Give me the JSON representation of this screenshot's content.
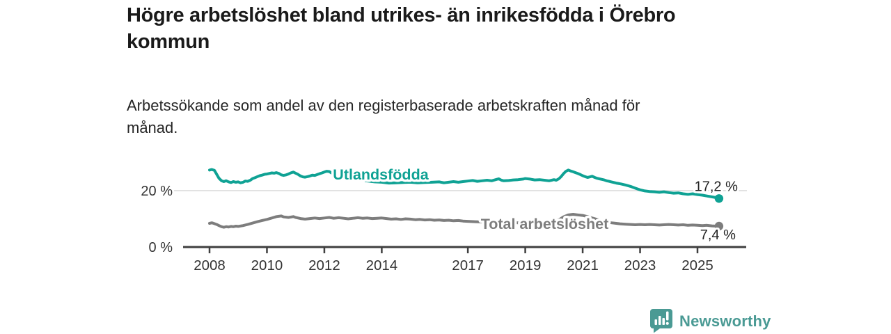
{
  "header": {
    "title": "Högre arbetslöshet bland utrikes- än inrikesfödda i Örebro kommun",
    "subtitle": "Arbetssökande som andel av den registerbaserade arbetskraften månad för månad."
  },
  "colors": {
    "title_text": "#1A1A1A",
    "subtitle_text": "#262626",
    "axis_line": "#3F3F3F",
    "axis_text": "#333333",
    "grid_line": "#D9D9D9",
    "value_label": "#222222",
    "series_utlandsfodda": "#0FA294",
    "series_total": "#7D7D7D",
    "brand_teal": "#4A9A94"
  },
  "chart_data": {
    "type": "line",
    "title": "Högre arbetslöshet bland utrikes- än inrikesfödda i Örebro kommun",
    "subtitle": "Arbetssökande som andel av den registerbaserade arbetskraften månad för månad.",
    "xlabel": "",
    "ylabel": "",
    "unit": "%",
    "xlim": [
      2007.1,
      2026.7
    ],
    "ylim": [
      0,
      30
    ],
    "grid": "horizontal line at 20 % only",
    "legend_position": "inline-labels-on-lines",
    "x_ticks": [
      2008,
      2010,
      2012,
      2014,
      2017,
      2019,
      2021,
      2023,
      2025
    ],
    "y_ticks": [
      {
        "value": 20,
        "label": "20 %"
      },
      {
        "value": 0,
        "label": "0 %"
      }
    ],
    "series": [
      {
        "name": "Utlandsfödda",
        "color": "#0FA294",
        "end_label": "17,2 %",
        "end_value": 17.2,
        "label_anchor": {
          "year": 2012.3,
          "pct": 25.7
        },
        "end_label_dx": 27,
        "end_label_dy": -11,
        "points": [
          [
            2008.0,
            27.3
          ],
          [
            2008.08,
            27.5
          ],
          [
            2008.17,
            27.2
          ],
          [
            2008.25,
            25.8
          ],
          [
            2008.33,
            24.4
          ],
          [
            2008.42,
            23.5
          ],
          [
            2008.5,
            23.2
          ],
          [
            2008.58,
            23.5
          ],
          [
            2008.67,
            23.1
          ],
          [
            2008.75,
            22.9
          ],
          [
            2008.83,
            23.2
          ],
          [
            2008.92,
            23.0
          ],
          [
            2009.0,
            23.1
          ],
          [
            2009.08,
            22.8
          ],
          [
            2009.17,
            23.0
          ],
          [
            2009.25,
            23.4
          ],
          [
            2009.33,
            23.3
          ],
          [
            2009.42,
            23.7
          ],
          [
            2009.5,
            24.3
          ],
          [
            2009.58,
            24.6
          ],
          [
            2009.67,
            25.0
          ],
          [
            2009.75,
            25.3
          ],
          [
            2009.83,
            25.5
          ],
          [
            2009.92,
            25.8
          ],
          [
            2010.0,
            25.9
          ],
          [
            2010.08,
            26.1
          ],
          [
            2010.17,
            26.3
          ],
          [
            2010.25,
            26.2
          ],
          [
            2010.33,
            26.4
          ],
          [
            2010.42,
            26.1
          ],
          [
            2010.5,
            25.6
          ],
          [
            2010.58,
            25.4
          ],
          [
            2010.67,
            25.6
          ],
          [
            2010.75,
            25.9
          ],
          [
            2010.83,
            26.3
          ],
          [
            2010.92,
            26.6
          ],
          [
            2011.0,
            26.2
          ],
          [
            2011.08,
            25.8
          ],
          [
            2011.17,
            25.2
          ],
          [
            2011.25,
            24.9
          ],
          [
            2011.33,
            24.8
          ],
          [
            2011.42,
            25.0
          ],
          [
            2011.5,
            25.2
          ],
          [
            2011.58,
            25.5
          ],
          [
            2011.67,
            25.4
          ],
          [
            2011.75,
            25.7
          ],
          [
            2011.83,
            26.0
          ],
          [
            2011.92,
            26.3
          ],
          [
            2012.0,
            26.6
          ],
          [
            2012.08,
            26.9
          ],
          [
            2012.17,
            26.8
          ],
          [
            2012.25,
            26.3
          ],
          [
            2012.4,
            25.6
          ],
          [
            2012.6,
            25.0
          ],
          [
            2012.8,
            24.6
          ],
          [
            2013.0,
            24.2
          ],
          [
            2013.25,
            23.8
          ],
          [
            2013.5,
            23.4
          ],
          [
            2013.75,
            23.1
          ],
          [
            2014.0,
            23.0
          ],
          [
            2014.25,
            22.7
          ],
          [
            2014.5,
            22.8
          ],
          [
            2014.75,
            22.9
          ],
          [
            2015.0,
            23.0
          ],
          [
            2015.25,
            22.8
          ],
          [
            2015.5,
            22.9
          ],
          [
            2015.75,
            23.0
          ],
          [
            2016.0,
            23.1
          ],
          [
            2016.17,
            22.8
          ],
          [
            2016.33,
            23.0
          ],
          [
            2016.5,
            23.2
          ],
          [
            2016.67,
            23.0
          ],
          [
            2016.83,
            23.2
          ],
          [
            2017.0,
            23.4
          ],
          [
            2017.17,
            23.6
          ],
          [
            2017.33,
            23.3
          ],
          [
            2017.5,
            23.5
          ],
          [
            2017.67,
            23.7
          ],
          [
            2017.83,
            23.5
          ],
          [
            2018.0,
            24.0
          ],
          [
            2018.08,
            24.2
          ],
          [
            2018.17,
            23.7
          ],
          [
            2018.25,
            23.5
          ],
          [
            2018.42,
            23.6
          ],
          [
            2018.58,
            23.8
          ],
          [
            2018.75,
            23.9
          ],
          [
            2018.92,
            24.1
          ],
          [
            2019.0,
            24.3
          ],
          [
            2019.17,
            24.1
          ],
          [
            2019.33,
            23.8
          ],
          [
            2019.5,
            23.9
          ],
          [
            2019.67,
            23.7
          ],
          [
            2019.83,
            23.5
          ],
          [
            2019.92,
            23.7
          ],
          [
            2020.0,
            23.9
          ],
          [
            2020.08,
            23.7
          ],
          [
            2020.17,
            24.2
          ],
          [
            2020.25,
            25.0
          ],
          [
            2020.33,
            26.0
          ],
          [
            2020.42,
            26.9
          ],
          [
            2020.5,
            27.3
          ],
          [
            2020.58,
            27.0
          ],
          [
            2020.67,
            26.7
          ],
          [
            2020.75,
            26.4
          ],
          [
            2020.83,
            26.1
          ],
          [
            2020.92,
            25.7
          ],
          [
            2021.0,
            25.3
          ],
          [
            2021.08,
            25.0
          ],
          [
            2021.17,
            24.7
          ],
          [
            2021.25,
            24.9
          ],
          [
            2021.33,
            25.1
          ],
          [
            2021.42,
            24.7
          ],
          [
            2021.5,
            24.4
          ],
          [
            2021.58,
            24.2
          ],
          [
            2021.67,
            24.0
          ],
          [
            2021.75,
            23.8
          ],
          [
            2021.83,
            23.5
          ],
          [
            2021.92,
            23.3
          ],
          [
            2022.0,
            23.1
          ],
          [
            2022.17,
            22.7
          ],
          [
            2022.33,
            22.4
          ],
          [
            2022.5,
            22.0
          ],
          [
            2022.67,
            21.5
          ],
          [
            2022.83,
            20.9
          ],
          [
            2023.0,
            20.3
          ],
          [
            2023.17,
            19.9
          ],
          [
            2023.33,
            19.7
          ],
          [
            2023.5,
            19.6
          ],
          [
            2023.67,
            19.4
          ],
          [
            2023.83,
            19.6
          ],
          [
            2024.0,
            19.3
          ],
          [
            2024.17,
            19.1
          ],
          [
            2024.33,
            19.2
          ],
          [
            2024.5,
            18.9
          ],
          [
            2024.67,
            18.7
          ],
          [
            2024.83,
            18.9
          ],
          [
            2025.0,
            18.6
          ],
          [
            2025.17,
            18.4
          ],
          [
            2025.33,
            18.1
          ],
          [
            2025.5,
            17.8
          ],
          [
            2025.67,
            17.5
          ],
          [
            2025.75,
            17.2
          ]
        ]
      },
      {
        "name": "Total arbetslöshet",
        "color": "#7D7D7D",
        "end_label": "7,4 %",
        "end_value": 7.4,
        "label_anchor": {
          "year": 2017.45,
          "pct": 8.1
        },
        "end_label_dx": 24,
        "end_label_dy": 19,
        "points": [
          [
            2008.0,
            8.4
          ],
          [
            2008.08,
            8.6
          ],
          [
            2008.17,
            8.3
          ],
          [
            2008.25,
            8.0
          ],
          [
            2008.33,
            7.6
          ],
          [
            2008.42,
            7.2
          ],
          [
            2008.5,
            7.0
          ],
          [
            2008.58,
            7.2
          ],
          [
            2008.67,
            7.1
          ],
          [
            2008.75,
            7.3
          ],
          [
            2008.83,
            7.2
          ],
          [
            2008.92,
            7.4
          ],
          [
            2009.0,
            7.3
          ],
          [
            2009.17,
            7.6
          ],
          [
            2009.33,
            8.0
          ],
          [
            2009.5,
            8.5
          ],
          [
            2009.67,
            9.0
          ],
          [
            2009.83,
            9.4
          ],
          [
            2010.0,
            9.8
          ],
          [
            2010.17,
            10.3
          ],
          [
            2010.33,
            10.8
          ],
          [
            2010.5,
            11.0
          ],
          [
            2010.58,
            10.7
          ],
          [
            2010.75,
            10.5
          ],
          [
            2010.92,
            10.8
          ],
          [
            2011.0,
            10.5
          ],
          [
            2011.17,
            10.1
          ],
          [
            2011.33,
            9.9
          ],
          [
            2011.5,
            10.1
          ],
          [
            2011.67,
            10.3
          ],
          [
            2011.83,
            10.1
          ],
          [
            2012.0,
            10.3
          ],
          [
            2012.17,
            10.5
          ],
          [
            2012.33,
            10.2
          ],
          [
            2012.5,
            10.4
          ],
          [
            2012.67,
            10.2
          ],
          [
            2012.83,
            10.0
          ],
          [
            2013.0,
            10.2
          ],
          [
            2013.17,
            10.4
          ],
          [
            2013.33,
            10.2
          ],
          [
            2013.5,
            10.3
          ],
          [
            2013.67,
            10.1
          ],
          [
            2013.83,
            10.2
          ],
          [
            2014.0,
            10.3
          ],
          [
            2014.17,
            10.1
          ],
          [
            2014.33,
            9.9
          ],
          [
            2014.5,
            10.0
          ],
          [
            2014.67,
            9.8
          ],
          [
            2014.83,
            10.0
          ],
          [
            2015.0,
            9.9
          ],
          [
            2015.17,
            9.7
          ],
          [
            2015.33,
            9.8
          ],
          [
            2015.5,
            9.6
          ],
          [
            2015.67,
            9.7
          ],
          [
            2015.83,
            9.5
          ],
          [
            2016.0,
            9.6
          ],
          [
            2016.17,
            9.4
          ],
          [
            2016.33,
            9.5
          ],
          [
            2016.5,
            9.3
          ],
          [
            2016.67,
            9.4
          ],
          [
            2016.83,
            9.2
          ],
          [
            2017.0,
            9.1
          ],
          [
            2017.25,
            9.0
          ],
          [
            2017.5,
            8.9
          ],
          [
            2017.75,
            8.8
          ],
          [
            2018.0,
            8.9
          ],
          [
            2018.25,
            8.7
          ],
          [
            2018.5,
            8.8
          ],
          [
            2018.75,
            8.6
          ],
          [
            2019.0,
            8.7
          ],
          [
            2019.25,
            8.8
          ],
          [
            2019.5,
            8.7
          ],
          [
            2019.75,
            8.9
          ],
          [
            2020.0,
            9.1
          ],
          [
            2020.17,
            9.6
          ],
          [
            2020.33,
            10.7
          ],
          [
            2020.5,
            11.4
          ],
          [
            2020.67,
            11.6
          ],
          [
            2020.83,
            11.4
          ],
          [
            2021.0,
            11.2
          ],
          [
            2021.17,
            10.8
          ],
          [
            2021.33,
            10.3
          ],
          [
            2021.5,
            9.8
          ],
          [
            2021.67,
            9.3
          ],
          [
            2021.83,
            8.9
          ],
          [
            2022.0,
            8.6
          ],
          [
            2022.17,
            8.4
          ],
          [
            2022.33,
            8.2
          ],
          [
            2022.5,
            8.1
          ],
          [
            2022.67,
            8.0
          ],
          [
            2022.83,
            7.9
          ],
          [
            2023.0,
            8.0
          ],
          [
            2023.17,
            7.9
          ],
          [
            2023.33,
            8.0
          ],
          [
            2023.5,
            7.9
          ],
          [
            2023.67,
            7.8
          ],
          [
            2023.83,
            7.9
          ],
          [
            2024.0,
            8.0
          ],
          [
            2024.17,
            7.9
          ],
          [
            2024.33,
            7.8
          ],
          [
            2024.5,
            7.9
          ],
          [
            2024.67,
            7.7
          ],
          [
            2024.83,
            7.8
          ],
          [
            2025.0,
            7.7
          ],
          [
            2025.17,
            7.6
          ],
          [
            2025.33,
            7.7
          ],
          [
            2025.5,
            7.5
          ],
          [
            2025.67,
            7.4
          ],
          [
            2025.75,
            7.4
          ]
        ]
      }
    ]
  },
  "footer": {
    "brand": "Newsworthy"
  }
}
